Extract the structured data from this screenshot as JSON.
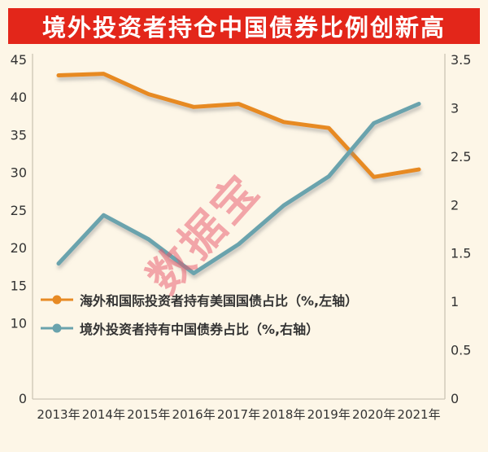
{
  "title": "境外投资者持仓中国债券比例创新高",
  "watermark": "数据宝",
  "colors": {
    "title_bg": "#e3261a",
    "title_text": "#ffffff",
    "page_bg": "#fdf6e7",
    "axis_line": "#ccc5b5",
    "tick_text": "#333333",
    "legend_text": "#333333",
    "watermark": "#e9576a"
  },
  "chart_data": {
    "type": "line",
    "title": "境外投资者持仓中国债券比例创新高",
    "categories": [
      "2013年",
      "2014年",
      "2015年",
      "2016年",
      "2017年",
      "2018年",
      "2019年",
      "2020年",
      "2021年"
    ],
    "series": [
      {
        "name": "海外和国际投资者持有美国国债占比（%,左轴）",
        "axis": "left",
        "color": "#e78a24",
        "values": [
          43,
          43.2,
          40.5,
          38.8,
          39.2,
          36.8,
          36,
          29.5,
          30.5
        ]
      },
      {
        "name": "境外投资者持有中国债券占比（%,右轴）",
        "axis": "right",
        "color": "#6aa3ad",
        "values": [
          1.4,
          1.9,
          1.65,
          1.3,
          1.6,
          2.0,
          2.3,
          2.85,
          3.05
        ]
      }
    ],
    "left_axis": {
      "min": 0,
      "max": 45,
      "ticks": [
        45,
        40,
        35,
        30,
        25,
        20,
        15,
        10,
        0
      ]
    },
    "right_axis": {
      "min": 0,
      "max": 3.5,
      "ticks": [
        3.5,
        3,
        2.5,
        2,
        1.5,
        1,
        0.5,
        0
      ]
    },
    "grid": false,
    "legend_position": "inside-bottom-left"
  }
}
